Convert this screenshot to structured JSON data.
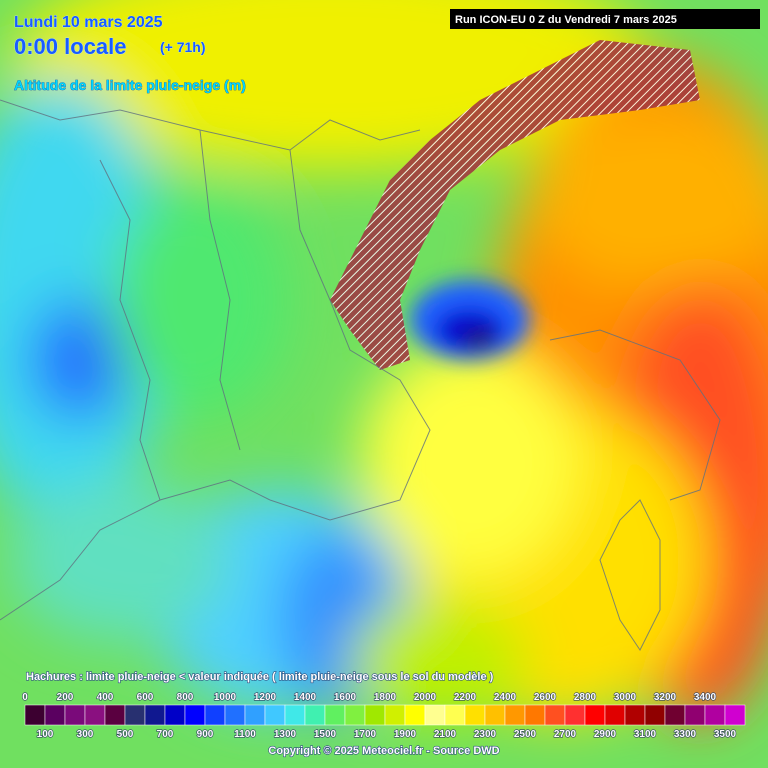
{
  "header": {
    "date": "Lundi 10 mars 2025",
    "time": "0:00 locale",
    "lead": "(+ 71h)",
    "title": "Altitude de la limite pluie-neige (m)",
    "run": "Run ICON-EU 0 Z du Vendredi 7 mars 2025"
  },
  "legend": {
    "note": "Hachures : limite pluie-neige < valeur indiquée ( limite pluie-neige sous le sol du modèle )",
    "labels_top": [
      0,
      200,
      400,
      600,
      800,
      1000,
      1200,
      1400,
      1600,
      1800,
      2000,
      2200,
      2400,
      2600,
      2800,
      3000,
      3200,
      3400
    ],
    "labels_bottom": [
      100,
      300,
      500,
      700,
      900,
      1100,
      1300,
      1500,
      1700,
      1900,
      2100,
      2300,
      2500,
      2700,
      2900,
      3100,
      3300,
      3500
    ],
    "colors": [
      "#3c0030",
      "#5a0060",
      "#7a0a7a",
      "#8a1080",
      "#5a0040",
      "#283070",
      "#101890",
      "#0000c8",
      "#0000ff",
      "#1040ff",
      "#2070ff",
      "#30a0ff",
      "#40c8ff",
      "#40e8e8",
      "#40f0b0",
      "#60f060",
      "#80f040",
      "#a0e800",
      "#d0f000",
      "#ffff00",
      "#ffff90",
      "#ffff50",
      "#ffe000",
      "#ffc000",
      "#ff9800",
      "#ff7800",
      "#ff5020",
      "#ff3030",
      "#ff0000",
      "#e00000",
      "#b00000",
      "#900000",
      "#700030",
      "#900070",
      "#b000a0",
      "#d000d0"
    ]
  },
  "footer": {
    "copyright": "Copyright © 2025 Meteociel.fr - Source DWD"
  }
}
